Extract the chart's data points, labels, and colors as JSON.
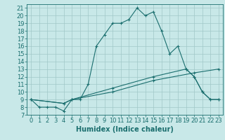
{
  "xlabel": "Humidex (Indice chaleur)",
  "background_color": "#c8e8e8",
  "line_color": "#1a6e6e",
  "grid_color": "#a0c8c8",
  "xlim": [
    -0.5,
    23.5
  ],
  "ylim": [
    7,
    21.5
  ],
  "xticks": [
    0,
    1,
    2,
    3,
    4,
    5,
    6,
    7,
    8,
    9,
    10,
    11,
    12,
    13,
    14,
    15,
    16,
    17,
    18,
    19,
    20,
    21,
    22,
    23
  ],
  "yticks": [
    7,
    8,
    9,
    10,
    11,
    12,
    13,
    14,
    15,
    16,
    17,
    18,
    19,
    20,
    21
  ],
  "line1_x": [
    0,
    1,
    2,
    3,
    4,
    5,
    6,
    7,
    8,
    9,
    10,
    11,
    12,
    13,
    14,
    15,
    16,
    17,
    18,
    19,
    20,
    21,
    22,
    23
  ],
  "line1_y": [
    9,
    8,
    8,
    8,
    7.5,
    9,
    9,
    11,
    16,
    17.5,
    19,
    19,
    19.5,
    21,
    20,
    20.5,
    18,
    15,
    16,
    13,
    12,
    10,
    9,
    9
  ],
  "line2_x": [
    0,
    4,
    5,
    10,
    15,
    19,
    20,
    21,
    22,
    23
  ],
  "line2_y": [
    9,
    8.5,
    9,
    10.5,
    12,
    13,
    12,
    10,
    9,
    9
  ],
  "line3_x": [
    0,
    4,
    5,
    10,
    15,
    20,
    23
  ],
  "line3_y": [
    9,
    8.5,
    9,
    10,
    11.5,
    12.5,
    13
  ],
  "label_fontsize": 7,
  "tick_fontsize": 6
}
